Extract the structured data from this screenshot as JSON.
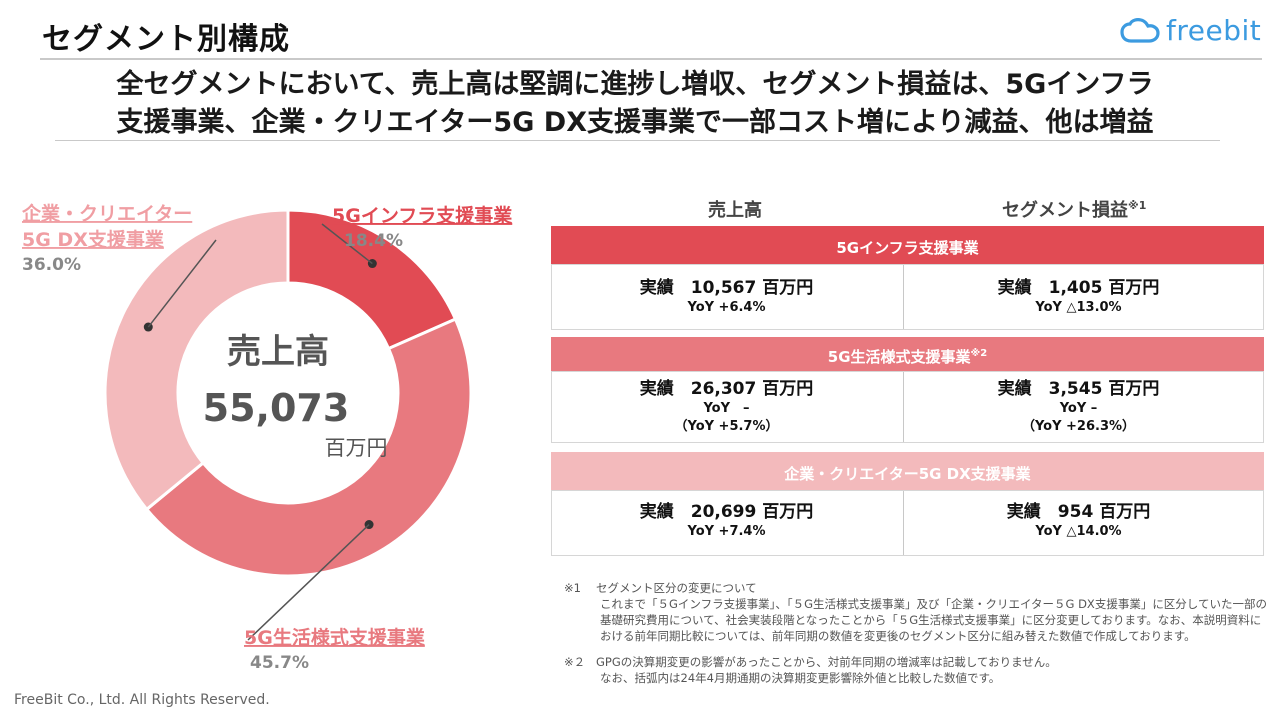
{
  "page": {
    "title": "セグメント別構成",
    "headline_line1": "全セグメントにおいて、売上高は堅調に進捗し増収、セグメント損益は、5Gインフラ",
    "headline_line2": "支援事業、企業・クリエイター5G DX支援事業で一部コスト増により減益、他は増益",
    "copyright": "FreeBit Co., Ltd. All Rights Reserved."
  },
  "logo": {
    "text": "freebit",
    "icon": "cloud-icon",
    "color": "#3c9be0"
  },
  "chart_data": {
    "type": "pie",
    "categories": [
      "5Gインフラ支援事業",
      "5G生活様式支援事業",
      "企業・クリエイター5G DX支援事業"
    ],
    "values": [
      18.4,
      45.7,
      36.0
    ],
    "value_labels": [
      "18.4%",
      "45.7%",
      "36.0%"
    ],
    "colors": [
      "#e14b54",
      "#e8797f",
      "#f3babc"
    ],
    "center_label": "売上高",
    "center_value": "55,073",
    "center_unit": "百万円",
    "labels": [
      {
        "lines": [
          "5Gインフラ支援事業"
        ],
        "value": "18.4%"
      },
      {
        "lines": [
          "5G生活様式支援事業"
        ],
        "value": "45.7%"
      },
      {
        "lines": [
          "企業・クリエイター",
          "5G DX支援事業"
        ],
        "value": "36.0%"
      }
    ]
  },
  "table": {
    "col_sales": "売上高",
    "col_profit": "セグメント損益",
    "col_profit_note": "※1",
    "segments": [
      {
        "name": "5Gインフラ支援事業",
        "note": "",
        "color": "#e14b54",
        "sales_main": "実績　10,567 百万円",
        "sales_yoy": "YoY +6.4%",
        "sales_yoy2": "",
        "profit_main": "実績　1,405 百万円",
        "profit_yoy": "YoY △13.0%",
        "profit_yoy2": ""
      },
      {
        "name": "5G生活様式支援事業",
        "note": "※2",
        "color": "#e8797f",
        "sales_main": "実績　26,307 百万円",
        "sales_yoy": "YoY　–",
        "sales_yoy2": "（YoY +5.7%）",
        "profit_main": "実績　3,545 百万円",
        "profit_yoy": "YoY –",
        "profit_yoy2": "（YoY +26.3%）"
      },
      {
        "name": "企業・クリエイター5G DX支援事業",
        "note": "",
        "color": "#f3babc",
        "sales_main": "実績　20,699 百万円",
        "sales_yoy": "YoY +7.4%",
        "sales_yoy2": "",
        "profit_main": "実績　954 百万円",
        "profit_yoy": "YoY △14.0%",
        "profit_yoy2": ""
      }
    ]
  },
  "notes": {
    "note1_mark": "※1",
    "note1_title": "セグメント区分の変更について",
    "note1_body": "これまで「５Gインフラ支援事業」、「５G生活様式支援事業」及び「企業・クリエイター５G DX支援事業」に区分していた一部の基礎研究費用について、社会実装段階となったことから「５G生活様式支援事業」に区分変更しております。なお、本説明資料における前年同期比較については、前年同期の数値を変更後のセグメント区分に組み替えた数値で作成しております。",
    "note2_mark": "※２",
    "note2_line1": "GPGの決算期変更の影響があったことから、対前年同期の増減率は記載しておりません。",
    "note2_line2": "なお、括弧内は24年4月期通期の決算期変更影響除外値と比較した数値です。"
  }
}
